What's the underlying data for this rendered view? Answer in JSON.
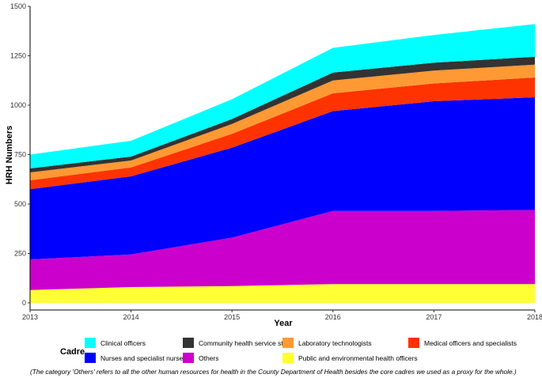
{
  "chart_data": {
    "type": "area",
    "stacked": true,
    "xlabel": "Year",
    "ylabel": "HRH Numbers",
    "x": [
      2013,
      2014,
      2015,
      2016,
      2017,
      2018
    ],
    "x_ticks": [
      "2013",
      "2014",
      "2015",
      "2016",
      "2017",
      "2018"
    ],
    "ylim": [
      0,
      1500
    ],
    "y_ticks": [
      "0",
      "250",
      "500",
      "750",
      "1000",
      "1250",
      "1500"
    ],
    "y_tick_values": [
      0,
      250,
      500,
      750,
      1000,
      1250,
      1500
    ],
    "series": [
      {
        "name": "Public and environmental health officers",
        "color": "#FFFF33",
        "values": [
          65,
          80,
          85,
          95,
          95,
          95
        ]
      },
      {
        "name": "Others",
        "color": "#CC00CC",
        "values": [
          155,
          165,
          245,
          370,
          370,
          375
        ]
      },
      {
        "name": "Nurses and specialist nurses",
        "color": "#0000FF",
        "values": [
          355,
          395,
          455,
          505,
          555,
          570
        ]
      },
      {
        "name": "Medical officers and specialists",
        "color": "#FF3300",
        "values": [
          45,
          45,
          70,
          90,
          90,
          100
        ]
      },
      {
        "name": "Laboratory technologists",
        "color": "#FF9933",
        "values": [
          40,
          35,
          50,
          65,
          65,
          65
        ]
      },
      {
        "name": "Community health service staff",
        "color": "#333333",
        "values": [
          20,
          20,
          25,
          40,
          40,
          40
        ]
      },
      {
        "name": "Clinical officers",
        "color": "#00FFFF",
        "values": [
          70,
          80,
          100,
          125,
          140,
          165
        ]
      }
    ],
    "legend_title": "Cadre",
    "legend_position": "bottom",
    "legend_order": [
      "Clinical officers",
      "Community health service staff",
      "Laboratory technologists",
      "Medical officers and specialists",
      "Nurses and specialist nurses",
      "Others",
      "Public and environmental health officers"
    ],
    "grid": false
  },
  "footnote": "(The category 'Others' refers to all the other human resources for health in the County Department of Health besides the core cadres we used as a proxy for the whole.)"
}
